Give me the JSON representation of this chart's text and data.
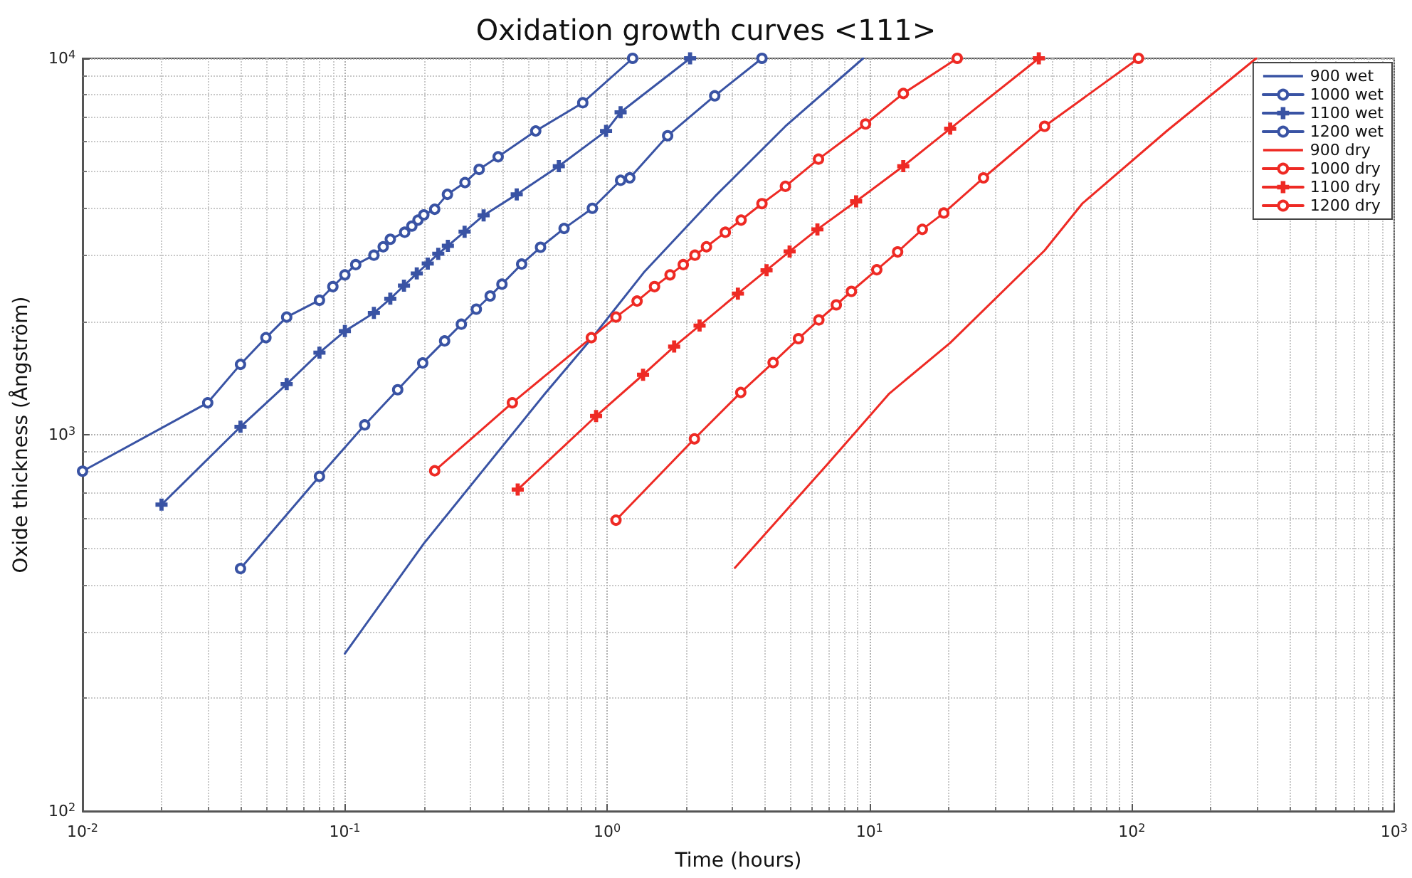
{
  "chart_data": {
    "type": "line",
    "title": "Oxidation growth curves <111>",
    "xlabel": "Time (hours)",
    "ylabel": "Oxide thickness (Ångström)",
    "log": "xy",
    "grid": true,
    "legend": "top right",
    "xlim": [
      0.01,
      1000
    ],
    "ylim": [
      100,
      10000
    ],
    "xticks": [
      {
        "value": 0.01,
        "label": "10$^{-2}$"
      },
      {
        "value": 0.1,
        "label": "10$^{-1}$"
      },
      {
        "value": 1,
        "label": "10$^{0}$"
      },
      {
        "value": 10,
        "label": "10$^{1}$"
      },
      {
        "value": 100,
        "label": "10$^{2}$"
      },
      {
        "value": 1000,
        "label": "10$^{3}$"
      }
    ],
    "yticks": [
      {
        "value": 100,
        "label": "10$^{2}$"
      },
      {
        "value": 1000,
        "label": "10$^{3}$"
      },
      {
        "value": 10000,
        "label": "10$^{4}$"
      }
    ],
    "series": [
      {
        "name": "900 wet",
        "color": "#3953a4",
        "marker": "none",
        "x": [
          0.1,
          0.2,
          0.58,
          0.88,
          1.38,
          2.57,
          4.78,
          9.46
        ],
        "values": [
          262,
          514,
          1287,
          1815,
          2700,
          4290,
          6600,
          10000
        ]
      },
      {
        "name": "1000 wet",
        "color": "#3953a4",
        "marker": "circle",
        "x": [
          0.04,
          0.08,
          0.119,
          0.159,
          0.198,
          0.24,
          0.278,
          0.317,
          0.358,
          0.397,
          0.472,
          0.557,
          0.685,
          0.878,
          1.125,
          1.22,
          1.7,
          2.57,
          3.89
        ],
        "values": [
          441,
          775,
          1062,
          1317,
          1551,
          1775,
          1966,
          2156,
          2337,
          2512,
          2840,
          3148,
          3532,
          3996,
          4742,
          4814,
          6230,
          7950,
          10000
        ]
      },
      {
        "name": "1100 wet",
        "color": "#3953a4",
        "marker": "cross",
        "x": [
          0.02,
          0.04,
          0.06,
          0.08,
          0.1,
          0.129,
          0.149,
          0.168,
          0.188,
          0.207,
          0.227,
          0.247,
          0.286,
          0.338,
          0.452,
          0.654,
          0.99,
          1.125,
          2.07
        ],
        "values": [
          652,
          1050,
          1363,
          1652,
          1885,
          2107,
          2298,
          2489,
          2682,
          2849,
          3025,
          3176,
          3462,
          3827,
          4352,
          5170,
          6412,
          7190,
          10000
        ]
      },
      {
        "name": "1200 wet",
        "color": "#3953a4",
        "marker": "circle",
        "x": [
          0.01,
          0.03,
          0.04,
          0.05,
          0.06,
          0.08,
          0.09,
          0.1,
          0.11,
          0.129,
          0.14,
          0.149,
          0.169,
          0.18,
          0.19,
          0.2,
          0.22,
          0.246,
          0.287,
          0.325,
          0.384,
          0.534,
          0.807,
          1.25
        ],
        "values": [
          800,
          1216,
          1538,
          1811,
          2054,
          2277,
          2475,
          2659,
          2831,
          2999,
          3158,
          3306,
          3451,
          3584,
          3718,
          3838,
          3972,
          4352,
          4677,
          5070,
          5476,
          6412,
          7620,
          10000
        ]
      },
      {
        "name": "900 dry",
        "color": "#ee2a24",
        "marker": "none",
        "x": [
          3.07,
          6.93,
          11.9,
          20.3,
          46.5,
          64.7,
          136,
          298
        ],
        "values": [
          443,
          837,
          1287,
          1754,
          3087,
          4111,
          6415,
          10000
        ]
      },
      {
        "name": "1000 dry",
        "color": "#ee2a24",
        "marker": "circle",
        "x": [
          1.08,
          2.15,
          3.23,
          4.29,
          5.36,
          6.41,
          7.47,
          8.53,
          10.66,
          12.8,
          15.9,
          19.2,
          27.2,
          46.5,
          106
        ],
        "values": [
          593,
          975,
          1295,
          1555,
          1800,
          2018,
          2213,
          2404,
          2744,
          3060,
          3513,
          3882,
          4813,
          6600,
          10000
        ]
      },
      {
        "name": "1100 dry",
        "color": "#ee2a24",
        "marker": "cross",
        "x": [
          0.456,
          0.907,
          1.37,
          1.8,
          2.25,
          3.15,
          4.05,
          4.96,
          6.33,
          8.89,
          13.45,
          20.3,
          44.2
        ],
        "values": [
          715,
          1121,
          1443,
          1715,
          1950,
          2371,
          2735,
          3069,
          3512,
          4169,
          5170,
          6503,
          10000
        ]
      },
      {
        "name": "1200 dry",
        "color": "#ee2a24",
        "marker": "circle",
        "x": [
          0.22,
          0.435,
          0.87,
          1.08,
          1.3,
          1.515,
          1.736,
          1.95,
          2.16,
          2.39,
          2.82,
          3.24,
          3.89,
          4.78,
          6.39,
          9.66,
          13.45,
          21.6
        ],
        "values": [
          802,
          1216,
          1811,
          2054,
          2265,
          2475,
          2659,
          2831,
          2999,
          3158,
          3451,
          3718,
          4111,
          4571,
          5398,
          6694,
          8066,
          10000
        ]
      }
    ]
  }
}
